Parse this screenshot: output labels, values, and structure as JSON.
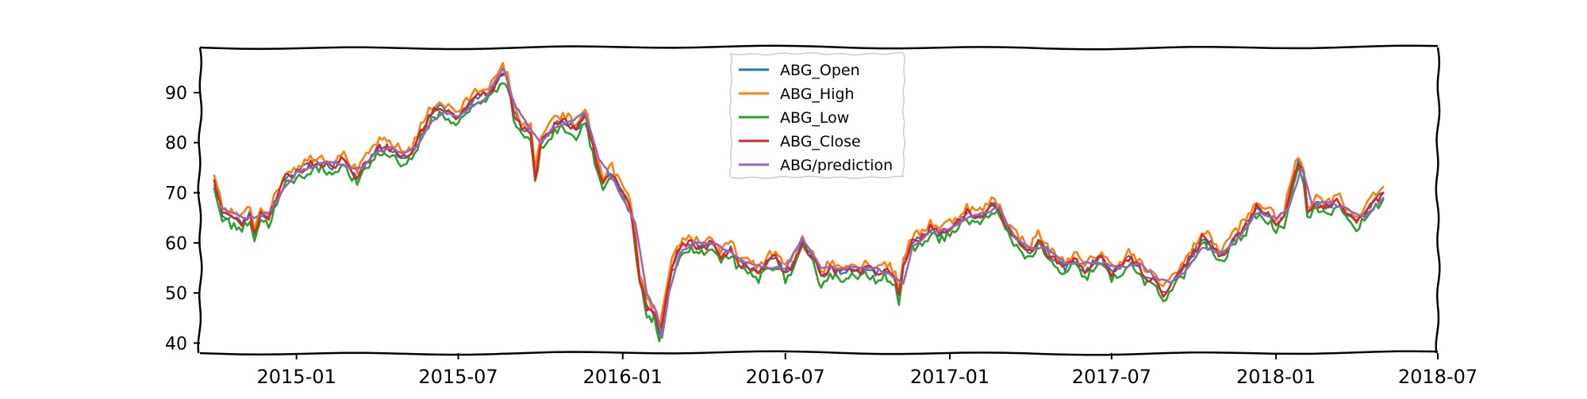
{
  "chart_data": {
    "type": "line",
    "title": "",
    "xlabel": "",
    "ylabel": "",
    "x_range": [
      "2014-09-15",
      "2018-07-01"
    ],
    "ylim": [
      38,
      99
    ],
    "yticks": [
      40,
      50,
      60,
      70,
      80,
      90
    ],
    "xticks": [
      {
        "date": "2015-01-01",
        "label": "2015-01"
      },
      {
        "date": "2015-07-01",
        "label": "2015-07"
      },
      {
        "date": "2016-01-01",
        "label": "2016-01"
      },
      {
        "date": "2016-07-01",
        "label": "2016-07"
      },
      {
        "date": "2017-01-01",
        "label": "2017-01"
      },
      {
        "date": "2017-07-01",
        "label": "2017-07"
      },
      {
        "date": "2018-01-01",
        "label": "2018-01"
      },
      {
        "date": "2018-07-01",
        "label": "2018-07"
      }
    ],
    "grid": false,
    "legend_position": "top-center",
    "style": "xkcd",
    "series": [
      {
        "name": "ABG_Open",
        "color": "#1f77b4",
        "offset": 0.0
      },
      {
        "name": "ABG_High",
        "color": "#ff7f0e",
        "offset": 1.2
      },
      {
        "name": "ABG_Low",
        "color": "#2ca02c",
        "offset": -1.3
      },
      {
        "name": "ABG_Close",
        "color": "#d62728",
        "offset": 0.0
      },
      {
        "name": "ABG/prediction",
        "color": "#9467bd",
        "offset": 0.0
      }
    ],
    "close_points": [
      [
        "2014-10-01",
        72
      ],
      [
        "2014-10-10",
        66
      ],
      [
        "2014-10-20",
        65
      ],
      [
        "2014-11-01",
        64
      ],
      [
        "2014-11-10",
        66
      ],
      [
        "2014-11-15",
        62
      ],
      [
        "2014-11-22",
        66
      ],
      [
        "2014-12-01",
        65
      ],
      [
        "2014-12-10",
        69
      ],
      [
        "2014-12-20",
        73
      ],
      [
        "2015-01-01",
        74
      ],
      [
        "2015-01-10",
        75
      ],
      [
        "2015-01-20",
        76
      ],
      [
        "2015-02-01",
        76
      ],
      [
        "2015-02-10",
        75
      ],
      [
        "2015-02-20",
        77
      ],
      [
        "2015-03-01",
        75
      ],
      [
        "2015-03-10",
        73
      ],
      [
        "2015-03-20",
        76
      ],
      [
        "2015-04-01",
        79
      ],
      [
        "2015-04-15",
        79
      ],
      [
        "2015-05-01",
        77
      ],
      [
        "2015-05-10",
        78
      ],
      [
        "2015-05-20",
        82
      ],
      [
        "2015-06-01",
        86
      ],
      [
        "2015-06-10",
        87
      ],
      [
        "2015-06-20",
        86
      ],
      [
        "2015-07-01",
        85
      ],
      [
        "2015-07-10",
        87
      ],
      [
        "2015-07-20",
        89
      ],
      [
        "2015-08-01",
        90
      ],
      [
        "2015-08-10",
        91
      ],
      [
        "2015-08-20",
        94
      ],
      [
        "2015-08-25",
        93
      ],
      [
        "2015-09-01",
        86
      ],
      [
        "2015-09-10",
        83
      ],
      [
        "2015-09-20",
        82
      ],
      [
        "2015-09-25",
        73
      ],
      [
        "2015-10-01",
        80
      ],
      [
        "2015-10-10",
        82
      ],
      [
        "2015-10-20",
        84
      ],
      [
        "2015-11-01",
        84
      ],
      [
        "2015-11-10",
        82
      ],
      [
        "2015-11-20",
        86
      ],
      [
        "2015-12-01",
        77
      ],
      [
        "2015-12-10",
        72
      ],
      [
        "2015-12-20",
        74
      ],
      [
        "2016-01-01",
        70
      ],
      [
        "2016-01-10",
        67
      ],
      [
        "2016-01-15",
        60
      ],
      [
        "2016-01-20",
        53
      ],
      [
        "2016-01-28",
        47
      ],
      [
        "2016-02-05",
        46
      ],
      [
        "2016-02-11",
        42
      ],
      [
        "2016-02-18",
        48
      ],
      [
        "2016-02-25",
        55
      ],
      [
        "2016-03-05",
        59
      ],
      [
        "2016-03-15",
        60
      ],
      [
        "2016-04-01",
        59
      ],
      [
        "2016-04-10",
        60
      ],
      [
        "2016-04-20",
        57
      ],
      [
        "2016-05-01",
        59
      ],
      [
        "2016-05-10",
        56
      ],
      [
        "2016-05-20",
        55
      ],
      [
        "2016-06-01",
        54
      ],
      [
        "2016-06-10",
        56
      ],
      [
        "2016-06-20",
        57
      ],
      [
        "2016-07-01",
        54
      ],
      [
        "2016-07-10",
        56
      ],
      [
        "2016-07-20",
        60
      ],
      [
        "2016-08-01",
        57
      ],
      [
        "2016-08-10",
        53
      ],
      [
        "2016-08-20",
        55
      ],
      [
        "2016-09-01",
        54
      ],
      [
        "2016-09-10",
        55
      ],
      [
        "2016-09-20",
        54
      ],
      [
        "2016-10-01",
        55
      ],
      [
        "2016-10-10",
        54
      ],
      [
        "2016-10-20",
        55
      ],
      [
        "2016-11-01",
        53
      ],
      [
        "2016-11-05",
        49
      ],
      [
        "2016-11-10",
        56
      ],
      [
        "2016-11-20",
        60
      ],
      [
        "2016-12-01",
        61
      ],
      [
        "2016-12-10",
        63
      ],
      [
        "2016-12-20",
        62
      ],
      [
        "2017-01-01",
        63
      ],
      [
        "2017-01-10",
        64
      ],
      [
        "2017-01-20",
        66
      ],
      [
        "2017-02-01",
        65
      ],
      [
        "2017-02-10",
        66
      ],
      [
        "2017-02-20",
        68
      ],
      [
        "2017-03-01",
        65
      ],
      [
        "2017-03-10",
        62
      ],
      [
        "2017-03-20",
        60
      ],
      [
        "2017-04-01",
        58
      ],
      [
        "2017-04-10",
        61
      ],
      [
        "2017-04-20",
        58
      ],
      [
        "2017-05-01",
        56
      ],
      [
        "2017-05-10",
        55
      ],
      [
        "2017-05-20",
        57
      ],
      [
        "2017-06-01",
        54
      ],
      [
        "2017-06-10",
        56
      ],
      [
        "2017-06-20",
        57
      ],
      [
        "2017-07-01",
        54
      ],
      [
        "2017-07-10",
        55
      ],
      [
        "2017-07-20",
        57
      ],
      [
        "2017-08-01",
        55
      ],
      [
        "2017-08-10",
        53
      ],
      [
        "2017-08-20",
        52
      ],
      [
        "2017-08-28",
        50
      ],
      [
        "2017-09-10",
        53
      ],
      [
        "2017-09-20",
        55
      ],
      [
        "2017-10-01",
        58
      ],
      [
        "2017-10-10",
        61
      ],
      [
        "2017-10-20",
        60
      ],
      [
        "2017-11-01",
        57
      ],
      [
        "2017-11-10",
        60
      ],
      [
        "2017-11-20",
        62
      ],
      [
        "2017-12-01",
        64
      ],
      [
        "2017-12-10",
        67
      ],
      [
        "2017-12-20",
        66
      ],
      [
        "2018-01-01",
        64
      ],
      [
        "2018-01-10",
        65
      ],
      [
        "2018-01-20",
        73
      ],
      [
        "2018-01-26",
        76
      ],
      [
        "2018-02-01",
        74
      ],
      [
        "2018-02-05",
        66
      ],
      [
        "2018-02-15",
        68
      ],
      [
        "2018-03-01",
        67
      ],
      [
        "2018-03-10",
        69
      ],
      [
        "2018-03-20",
        66
      ],
      [
        "2018-04-01",
        64
      ],
      [
        "2018-04-10",
        66
      ],
      [
        "2018-04-20",
        68
      ],
      [
        "2018-05-01",
        70
      ]
    ],
    "prediction_points": [
      [
        "2014-10-08",
        67
      ],
      [
        "2014-10-20",
        66
      ],
      [
        "2014-11-01",
        65
      ],
      [
        "2014-11-15",
        65
      ],
      [
        "2014-12-01",
        66
      ],
      [
        "2014-12-15",
        70
      ],
      [
        "2015-01-01",
        74
      ],
      [
        "2015-01-15",
        75
      ],
      [
        "2015-02-01",
        76
      ],
      [
        "2015-02-15",
        76
      ],
      [
        "2015-03-01",
        75
      ],
      [
        "2015-03-15",
        75
      ],
      [
        "2015-04-01",
        78
      ],
      [
        "2015-04-15",
        79
      ],
      [
        "2015-05-01",
        78
      ],
      [
        "2015-05-15",
        79
      ],
      [
        "2015-06-01",
        84
      ],
      [
        "2015-06-15",
        86
      ],
      [
        "2015-07-01",
        85
      ],
      [
        "2015-07-15",
        87
      ],
      [
        "2015-08-01",
        89
      ],
      [
        "2015-08-20",
        95
      ],
      [
        "2015-09-01",
        88
      ],
      [
        "2015-09-15",
        84
      ],
      [
        "2015-10-01",
        80
      ],
      [
        "2015-10-15",
        83
      ],
      [
        "2015-11-01",
        84
      ],
      [
        "2015-11-20",
        86
      ],
      [
        "2015-12-05",
        77
      ],
      [
        "2015-12-20",
        73
      ],
      [
        "2016-01-01",
        69
      ],
      [
        "2016-01-15",
        64
      ],
      [
        "2016-01-28",
        50
      ],
      [
        "2016-02-08",
        46
      ],
      [
        "2016-02-14",
        41
      ],
      [
        "2016-02-22",
        50
      ],
      [
        "2016-03-05",
        58
      ],
      [
        "2016-03-20",
        60
      ],
      [
        "2016-04-10",
        60
      ],
      [
        "2016-05-01",
        58
      ],
      [
        "2016-05-20",
        56
      ],
      [
        "2016-06-10",
        55
      ],
      [
        "2016-07-01",
        55
      ],
      [
        "2016-07-20",
        61
      ],
      [
        "2016-08-10",
        55
      ],
      [
        "2016-09-01",
        55
      ],
      [
        "2016-09-20",
        55
      ],
      [
        "2016-10-10",
        55
      ],
      [
        "2016-11-01",
        53
      ],
      [
        "2016-11-10",
        52
      ],
      [
        "2016-11-20",
        59
      ],
      [
        "2016-12-10",
        62
      ],
      [
        "2017-01-01",
        63
      ],
      [
        "2017-01-20",
        65
      ],
      [
        "2017-02-10",
        66
      ],
      [
        "2017-02-25",
        67
      ],
      [
        "2017-03-15",
        61
      ],
      [
        "2017-04-01",
        59
      ],
      [
        "2017-04-20",
        59
      ],
      [
        "2017-05-10",
        56
      ],
      [
        "2017-06-01",
        56
      ],
      [
        "2017-06-20",
        56
      ],
      [
        "2017-07-10",
        55
      ],
      [
        "2017-08-01",
        56
      ],
      [
        "2017-08-20",
        53
      ],
      [
        "2017-09-05",
        52
      ],
      [
        "2017-09-20",
        54
      ],
      [
        "2017-10-10",
        59
      ],
      [
        "2017-11-01",
        58
      ],
      [
        "2017-11-20",
        61
      ],
      [
        "2017-12-10",
        66
      ],
      [
        "2018-01-01",
        65
      ],
      [
        "2018-01-15",
        67
      ],
      [
        "2018-01-30",
        75
      ],
      [
        "2018-02-10",
        68
      ],
      [
        "2018-03-01",
        68
      ],
      [
        "2018-03-20",
        67
      ],
      [
        "2018-04-10",
        65
      ],
      [
        "2018-05-01",
        69
      ]
    ]
  }
}
